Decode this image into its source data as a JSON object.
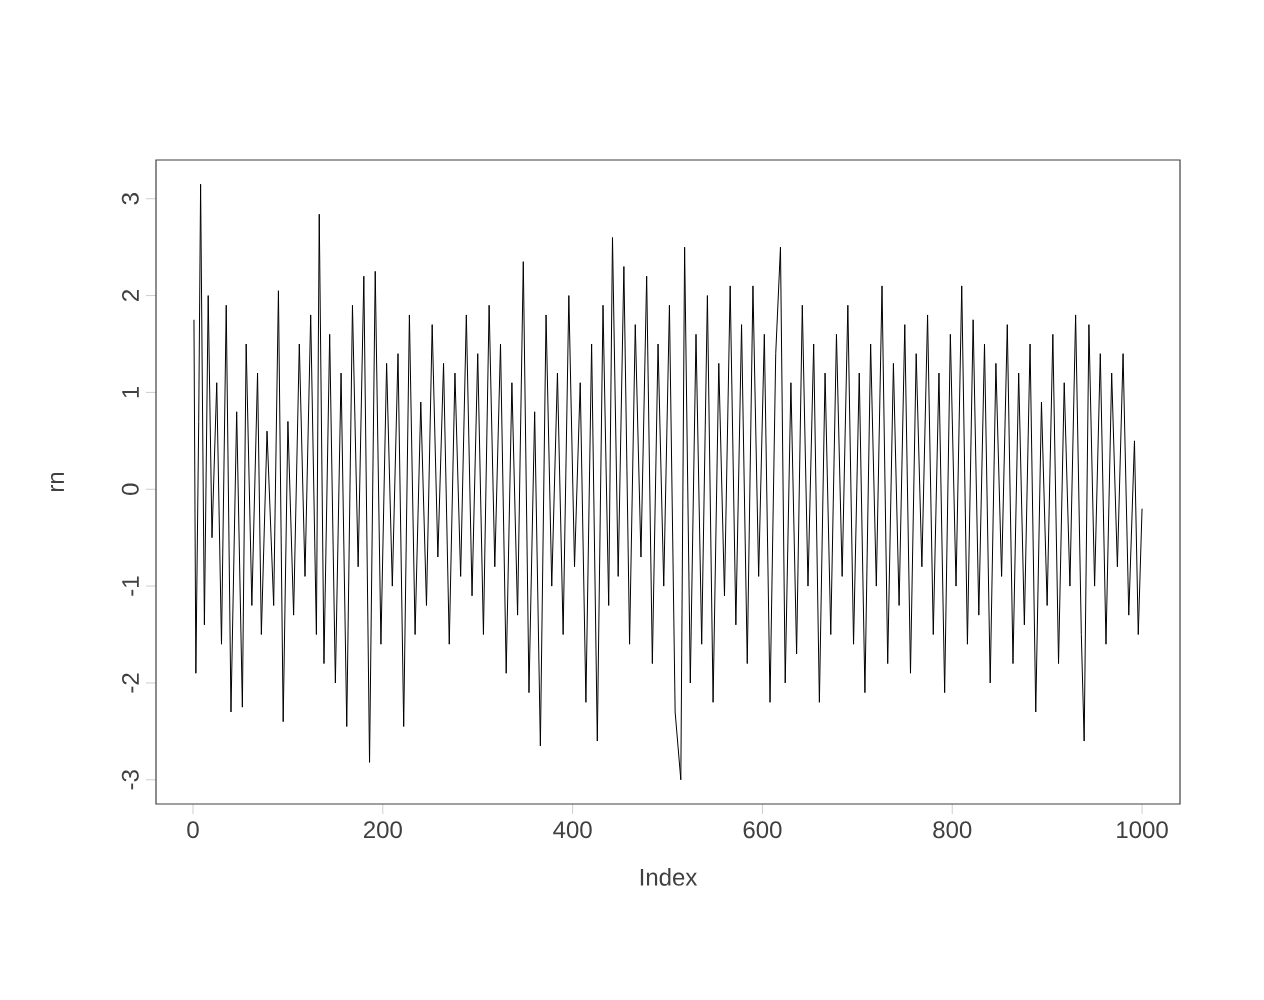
{
  "chart_data": {
    "type": "line",
    "xlabel": "Index",
    "ylabel": "rn",
    "xlim": [
      -39,
      1040
    ],
    "ylim": [
      -3.25,
      3.4
    ],
    "xticks": [
      0,
      200,
      400,
      600,
      800,
      1000
    ],
    "yticks": [
      -3,
      -2,
      -1,
      0,
      1,
      2,
      3
    ],
    "color": "#000000",
    "x": [
      1,
      3,
      6,
      8,
      12,
      16,
      20,
      25,
      30,
      35,
      40,
      46,
      52,
      56,
      62,
      68,
      72,
      78,
      85,
      90,
      95,
      100,
      106,
      112,
      118,
      124,
      130,
      133,
      138,
      144,
      150,
      156,
      162,
      168,
      174,
      180,
      186,
      192,
      198,
      204,
      210,
      216,
      222,
      228,
      234,
      240,
      246,
      252,
      258,
      264,
      270,
      276,
      282,
      288,
      294,
      300,
      306,
      312,
      318,
      324,
      330,
      336,
      342,
      348,
      354,
      360,
      366,
      372,
      378,
      384,
      390,
      396,
      402,
      408,
      414,
      420,
      426,
      432,
      438,
      442,
      448,
      454,
      460,
      466,
      472,
      478,
      484,
      490,
      496,
      502,
      508,
      514,
      518,
      524,
      530,
      536,
      542,
      548,
      554,
      560,
      566,
      572,
      578,
      584,
      590,
      596,
      602,
      608,
      614,
      619,
      624,
      630,
      636,
      642,
      648,
      654,
      660,
      666,
      672,
      678,
      684,
      690,
      696,
      702,
      708,
      714,
      720,
      726,
      732,
      738,
      744,
      750,
      756,
      762,
      768,
      774,
      780,
      786,
      792,
      798,
      804,
      810,
      816,
      822,
      828,
      834,
      840,
      846,
      852,
      858,
      864,
      870,
      876,
      882,
      888,
      894,
      900,
      906,
      912,
      918,
      924,
      930,
      936,
      939,
      944,
      950,
      956,
      962,
      968,
      974,
      980,
      986,
      992,
      996,
      1000
    ],
    "values": [
      1.75,
      -1.9,
      0.7,
      3.15,
      -1.4,
      2.0,
      -0.5,
      1.1,
      -1.6,
      1.9,
      -2.3,
      0.8,
      -2.25,
      1.5,
      -1.2,
      1.2,
      -1.5,
      0.6,
      -1.2,
      2.05,
      -2.4,
      0.7,
      -1.3,
      1.5,
      -0.9,
      1.8,
      -1.5,
      2.84,
      -1.8,
      1.6,
      -2.0,
      1.2,
      -2.45,
      1.9,
      -0.8,
      2.2,
      -2.82,
      2.25,
      -1.6,
      1.3,
      -1.0,
      1.4,
      -2.45,
      1.8,
      -1.5,
      0.9,
      -1.2,
      1.7,
      -0.7,
      1.3,
      -1.6,
      1.2,
      -0.9,
      1.8,
      -1.1,
      1.4,
      -1.5,
      1.9,
      -0.8,
      1.5,
      -1.9,
      1.1,
      -1.3,
      2.35,
      -2.1,
      0.8,
      -2.65,
      1.8,
      -1.0,
      1.2,
      -1.5,
      2.0,
      -0.8,
      1.1,
      -2.2,
      1.5,
      -2.6,
      1.9,
      -1.2,
      2.6,
      -0.9,
      2.3,
      -1.6,
      1.7,
      -0.7,
      2.2,
      -1.8,
      1.5,
      -1.0,
      1.9,
      -2.3,
      -3.0,
      2.5,
      -2.0,
      1.6,
      -1.6,
      2.0,
      -2.2,
      1.3,
      -1.1,
      2.1,
      -1.4,
      1.7,
      -1.8,
      2.1,
      -0.9,
      1.6,
      -2.2,
      1.4,
      2.5,
      -2.0,
      1.1,
      -1.7,
      1.9,
      -1.0,
      1.5,
      -2.2,
      1.2,
      -1.5,
      1.6,
      -0.9,
      1.9,
      -1.6,
      1.2,
      -2.1,
      1.5,
      -1.0,
      2.1,
      -1.8,
      1.3,
      -1.2,
      1.7,
      -1.9,
      1.4,
      -0.8,
      1.8,
      -1.5,
      1.2,
      -2.1,
      1.6,
      -1.0,
      2.1,
      -1.6,
      1.75,
      -1.3,
      1.5,
      -2.0,
      1.3,
      -0.9,
      1.7,
      -1.8,
      1.2,
      -1.4,
      1.5,
      -2.3,
      0.9,
      -1.2,
      1.6,
      -1.8,
      1.1,
      -1.0,
      1.8,
      -1.5,
      -2.6,
      1.7,
      -1.0,
      1.4,
      -1.6,
      1.2,
      -0.8,
      1.4,
      -1.3,
      0.5,
      -1.5,
      -0.2
    ]
  }
}
